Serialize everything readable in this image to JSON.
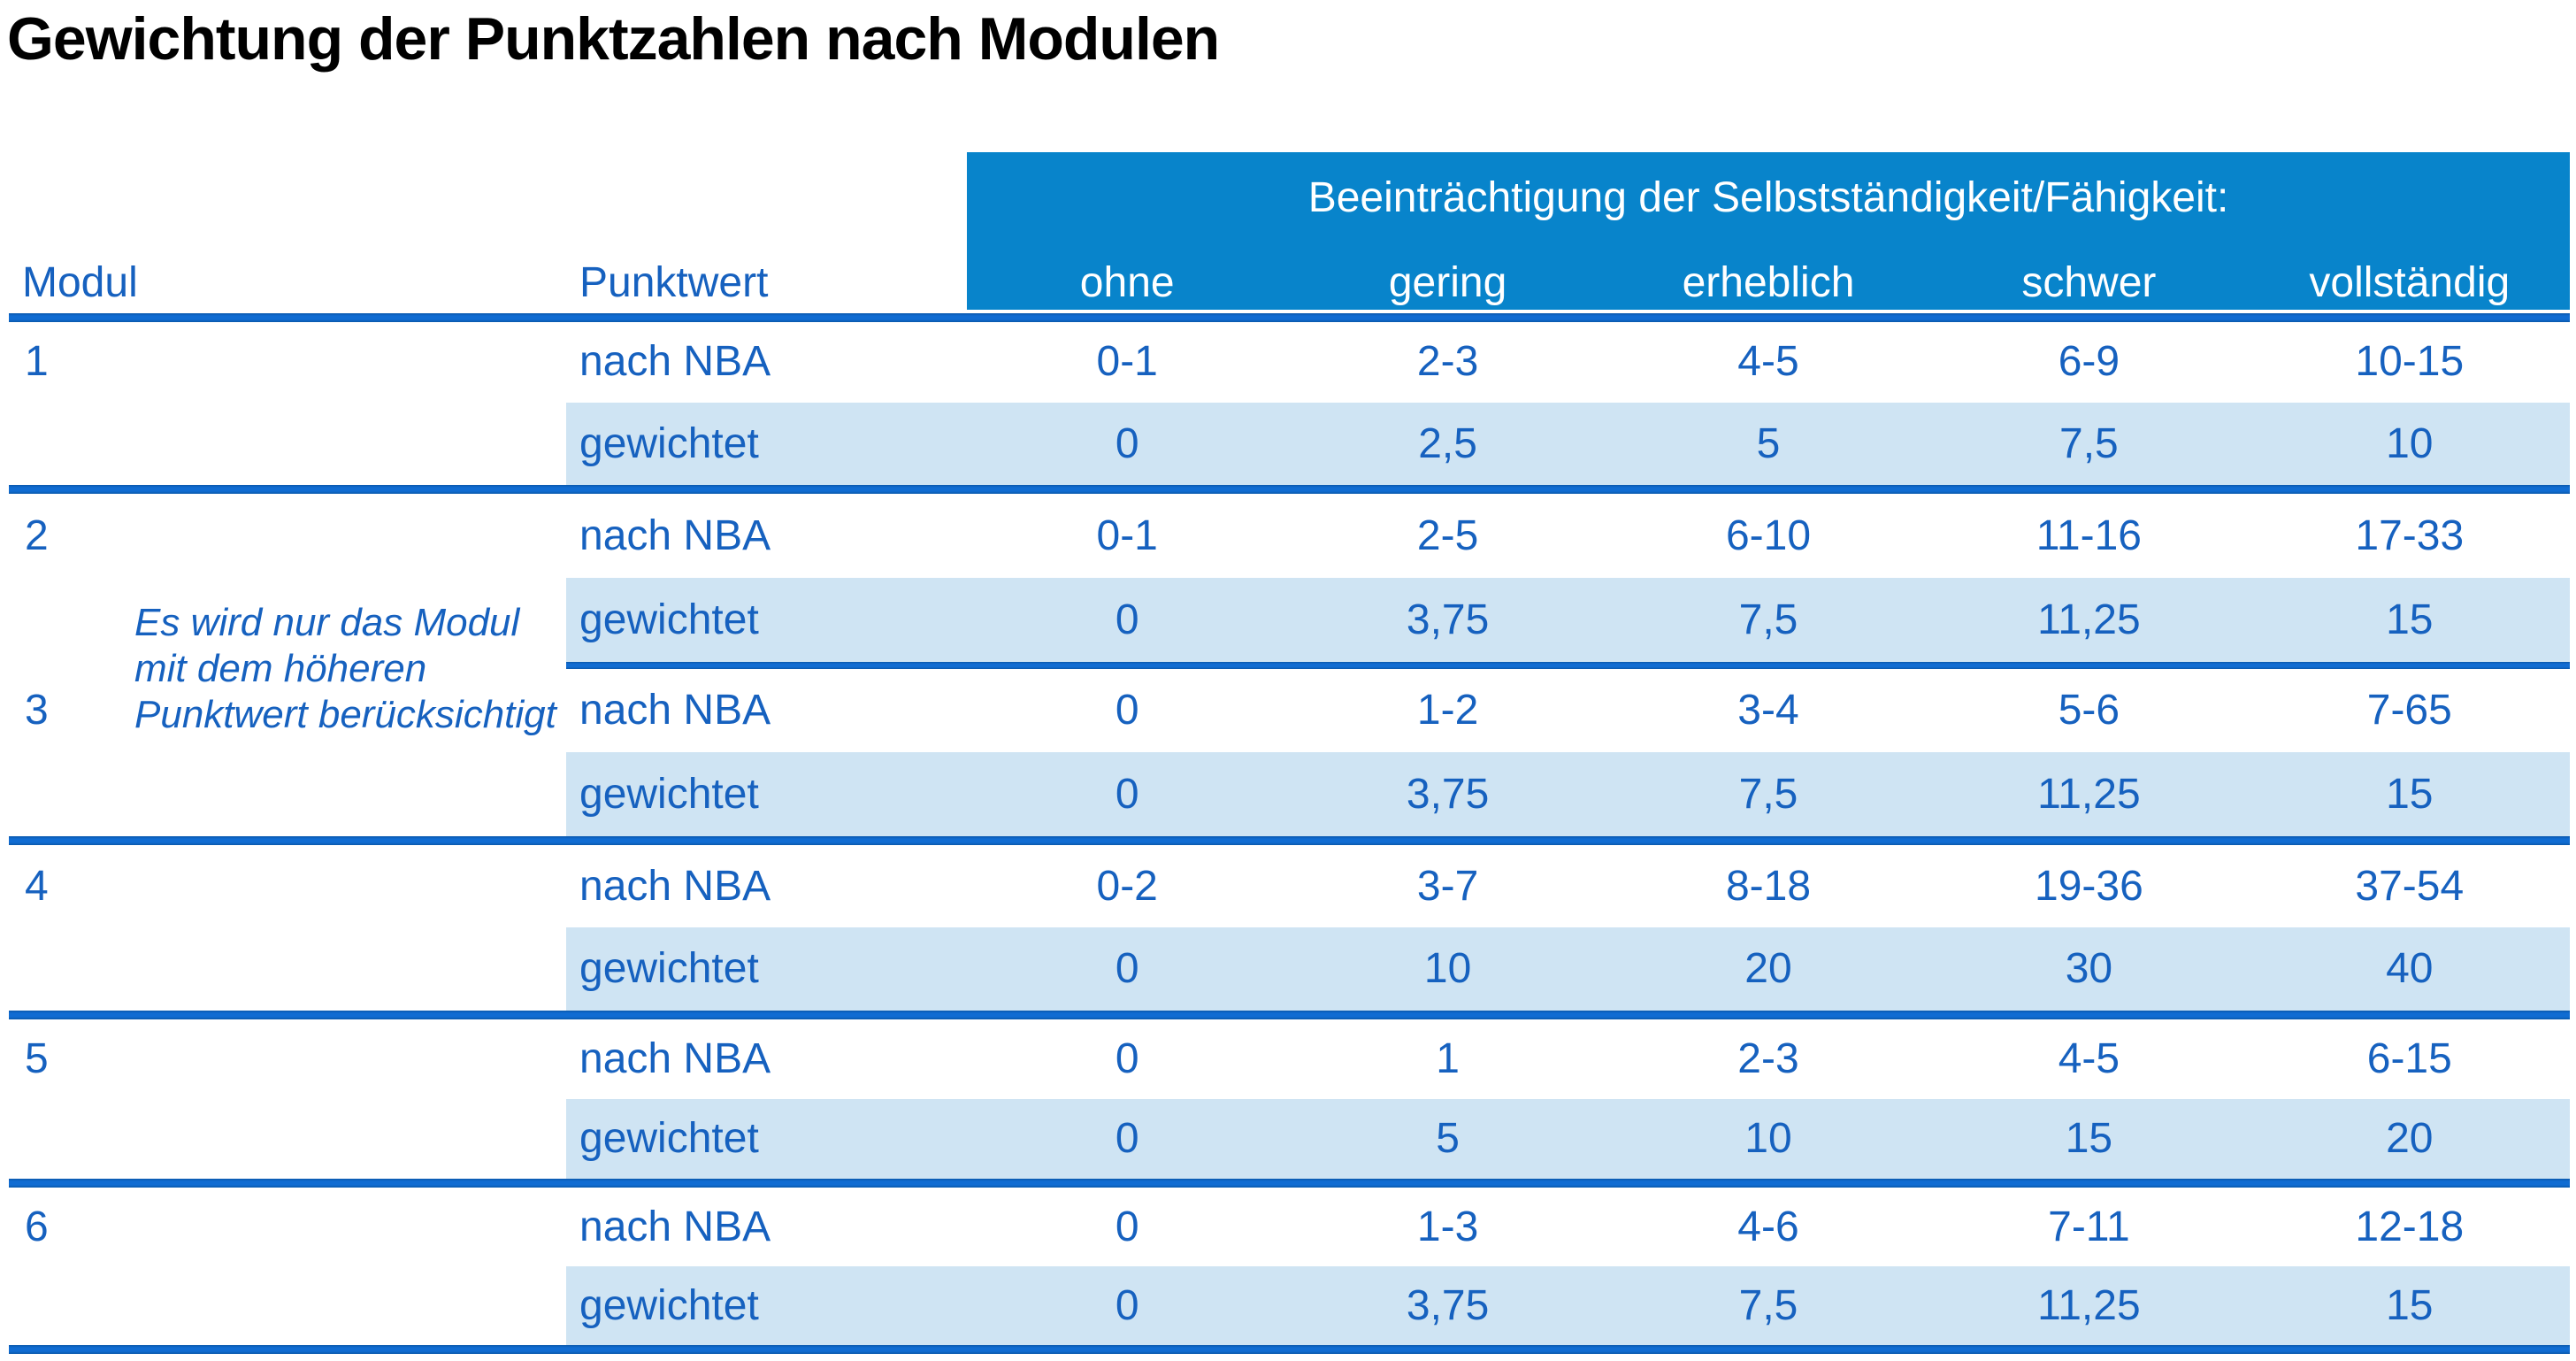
{
  "title": "Gewichtung der Punktzahlen nach Modulen",
  "table": {
    "header_band_title": "Beeinträchtigung der Selbstständigkeit/Fähigkeit:",
    "severity_headers": [
      "ohne",
      "gering",
      "erheblich",
      "schwer",
      "vollständig"
    ],
    "col_modul": "Modul",
    "col_punktwert": "Punktwert",
    "note_lines": [
      "Es wird nur das Modul",
      "mit dem höheren",
      "Punktwert berücksichtigt"
    ],
    "modules": [
      {
        "number": "1",
        "rows": [
          {
            "label": "nach NBA",
            "values": [
              "0-1",
              "2-3",
              "4-5",
              "6-9",
              "10-15"
            ]
          },
          {
            "label": "gewichtet",
            "values": [
              "0",
              "2,5",
              "5",
              "7,5",
              "10"
            ]
          }
        ]
      },
      {
        "number": "2",
        "rows": [
          {
            "label": "nach NBA",
            "values": [
              "0-1",
              "2-5",
              "6-10",
              "11-16",
              "17-33"
            ]
          },
          {
            "label": "gewichtet",
            "values": [
              "0",
              "3,75",
              "7,5",
              "11,25",
              "15"
            ]
          }
        ]
      },
      {
        "number": "3",
        "rows": [
          {
            "label": "nach NBA",
            "values": [
              "0",
              "1-2",
              "3-4",
              "5-6",
              "7-65"
            ]
          },
          {
            "label": "gewichtet",
            "values": [
              "0",
              "3,75",
              "7,5",
              "11,25",
              "15"
            ]
          }
        ]
      },
      {
        "number": "4",
        "rows": [
          {
            "label": "nach NBA",
            "values": [
              "0-2",
              "3-7",
              "8-18",
              "19-36",
              "37-54"
            ]
          },
          {
            "label": "gewichtet",
            "values": [
              "0",
              "10",
              "20",
              "30",
              "40"
            ]
          }
        ]
      },
      {
        "number": "5",
        "rows": [
          {
            "label": "nach NBA",
            "values": [
              "0",
              "1",
              "2-3",
              "4-5",
              "6-15"
            ]
          },
          {
            "label": "gewichtet",
            "values": [
              "0",
              "5",
              "10",
              "15",
              "20"
            ]
          }
        ]
      },
      {
        "number": "6",
        "rows": [
          {
            "label": "nach NBA",
            "values": [
              "0",
              "1-3",
              "4-6",
              "7-11",
              "12-18"
            ]
          },
          {
            "label": "gewichtet",
            "values": [
              "0",
              "3,75",
              "7,5",
              "11,25",
              "15"
            ]
          }
        ]
      }
    ],
    "colors": {
      "header_bg": "#0884cb",
      "line_blue": "#0c64c8",
      "text_blue": "#1661bf",
      "row_band": "#cfe4f3",
      "title_color": "#000000"
    }
  }
}
